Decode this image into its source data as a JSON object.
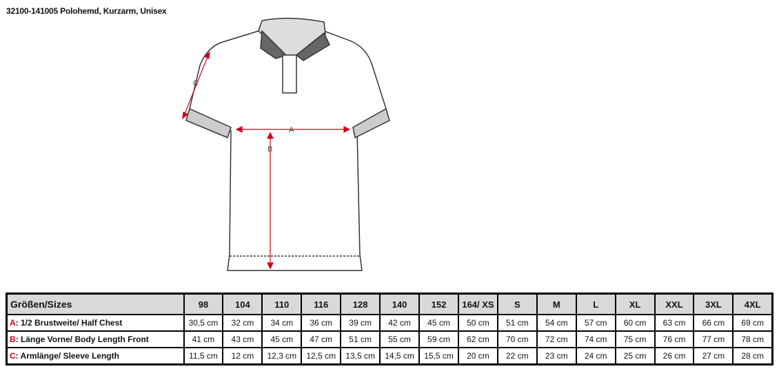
{
  "title": "32100-141005 Polohemd, Kurzarm, Unisex",
  "diagram": {
    "labels": {
      "a": "A",
      "b": "B",
      "c": "C"
    },
    "arrow_color": "#d0021b"
  },
  "table": {
    "header_label": "Größen/Sizes",
    "sizes": [
      "98",
      "104",
      "110",
      "116",
      "128",
      "140",
      "152",
      "164/ XS",
      "S",
      "M",
      "L",
      "XL",
      "XXL",
      "3XL",
      "4XL"
    ],
    "rows": [
      {
        "letter": "A",
        "label": ": 1/2 Brustweite/ Half Chest",
        "values": [
          "30,5 cm",
          "32 cm",
          "34 cm",
          "36 cm",
          "39 cm",
          "42 cm",
          "45 cm",
          "50 cm",
          "51 cm",
          "54 cm",
          "57 cm",
          "60 cm",
          "63 cm",
          "66 cm",
          "69 cm"
        ]
      },
      {
        "letter": "B",
        "label": ": Länge Vorne/ Body Length Front",
        "values": [
          "41 cm",
          "43 cm",
          "45 cm",
          "47 cm",
          "51 cm",
          "55 cm",
          "59 cm",
          "62 cm",
          "70 cm",
          "72 cm",
          "74 cm",
          "75 cm",
          "76 cm",
          "77 cm",
          "78 cm"
        ]
      },
      {
        "letter": "C",
        "label": ": Armlänge/ Sleeve Length",
        "values": [
          "11,5 cm",
          "12 cm",
          "12,3 cm",
          "12,5 cm",
          "13,5 cm",
          "14,5 cm",
          "15,5 cm",
          "20 cm",
          "22 cm",
          "23 cm",
          "24 cm",
          "25 cm",
          "26 cm",
          "27 cm",
          "28 cm"
        ]
      }
    ]
  }
}
